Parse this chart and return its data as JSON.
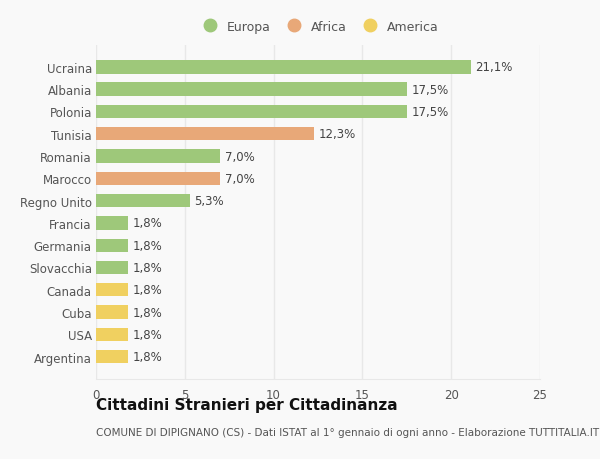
{
  "countries": [
    "Argentina",
    "USA",
    "Cuba",
    "Canada",
    "Slovacchia",
    "Germania",
    "Francia",
    "Regno Unito",
    "Marocco",
    "Romania",
    "Tunisia",
    "Polonia",
    "Albania",
    "Ucraina"
  ],
  "values": [
    1.8,
    1.8,
    1.8,
    1.8,
    1.8,
    1.8,
    1.8,
    5.3,
    7.0,
    7.0,
    12.3,
    17.5,
    17.5,
    21.1
  ],
  "labels": [
    "1,8%",
    "1,8%",
    "1,8%",
    "1,8%",
    "1,8%",
    "1,8%",
    "1,8%",
    "5,3%",
    "7,0%",
    "7,0%",
    "12,3%",
    "17,5%",
    "17,5%",
    "21,1%"
  ],
  "colors": [
    "#f0d060",
    "#f0d060",
    "#f0d060",
    "#f0d060",
    "#9ec87a",
    "#9ec87a",
    "#9ec87a",
    "#9ec87a",
    "#e8a878",
    "#9ec87a",
    "#e8a878",
    "#9ec87a",
    "#9ec87a",
    "#9ec87a"
  ],
  "color_europa": "#9ec87a",
  "color_africa": "#e8a878",
  "color_america": "#f0d060",
  "xlim": [
    0,
    25
  ],
  "xticks": [
    0,
    5,
    10,
    15,
    20,
    25
  ],
  "title": "Cittadini Stranieri per Cittadinanza",
  "subtitle": "COMUNE DI DIPIGNANO (CS) - Dati ISTAT al 1° gennaio di ogni anno - Elaborazione TUTTITALIA.IT",
  "bg_color": "#f9f9f9",
  "grid_color": "#e8e8e8",
  "bar_height": 0.6,
  "label_fontsize": 8.5,
  "tick_fontsize": 8.5,
  "title_fontsize": 11,
  "subtitle_fontsize": 7.5
}
